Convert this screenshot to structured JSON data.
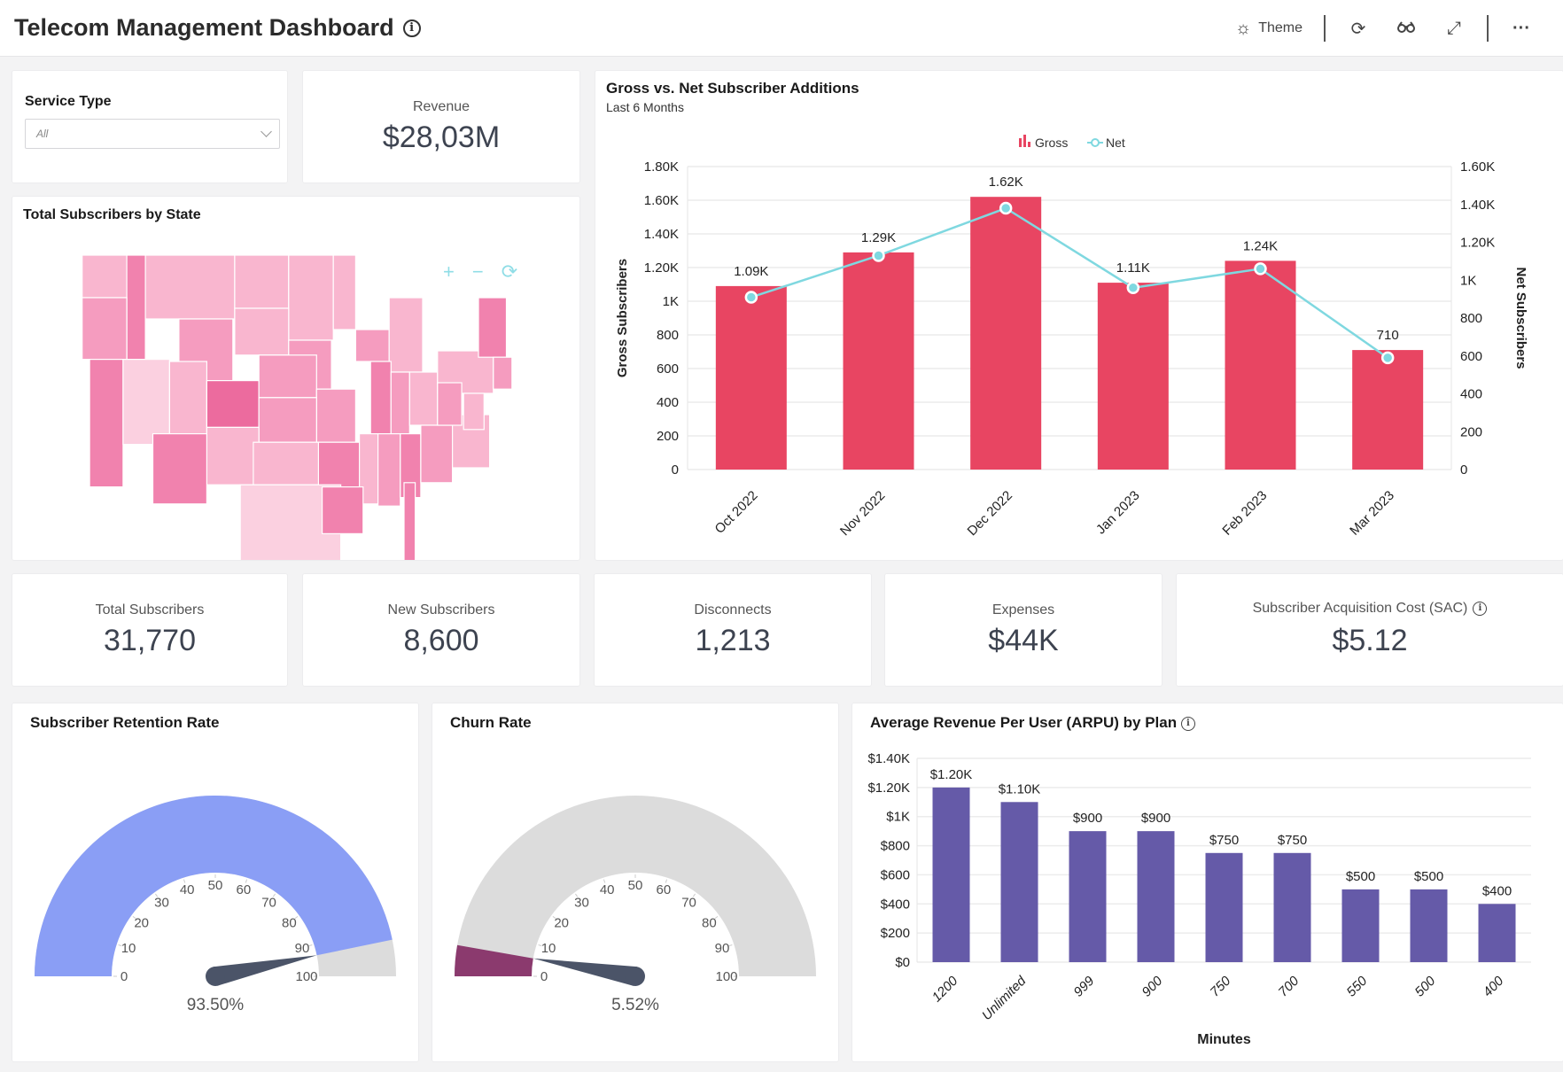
{
  "header": {
    "title": "Telecom Management Dashboard",
    "title_icon": "info-icon",
    "toolbar": {
      "theme_label": "Theme",
      "theme_icon": "sun-icon",
      "refresh_icon": "refresh-icon",
      "glasses_icon": "glasses-icon",
      "expand_icon": "expand-icon",
      "more_icon": "more-icon"
    }
  },
  "filter": {
    "label": "Service Type",
    "selected": "All"
  },
  "revenue": {
    "label": "Revenue",
    "value": "$28,03M"
  },
  "map": {
    "title": "Total Subscribers by State",
    "controls": {
      "zoom_in": "+",
      "zoom_out": "−",
      "reset": "⟳"
    },
    "color_scale": [
      "#fbd0e0",
      "#f9b6cf",
      "#f59cbf",
      "#f182ae",
      "#ec6b9e"
    ]
  },
  "kpis": [
    {
      "label": "Total Subscribers",
      "value": "31,770"
    },
    {
      "label": "New Subscribers",
      "value": "8,600"
    },
    {
      "label": "Disconnects",
      "value": "1,213"
    },
    {
      "label": "Expenses",
      "value": "$44K"
    },
    {
      "label": "Subscriber Acquisition Cost (SAC)",
      "value": "$5.12"
    }
  ],
  "chart_data": [
    {
      "id": "gross-net",
      "type": "bar",
      "title": "Gross vs. Net Subscriber Additions",
      "subtitle": "Last 6 Months",
      "categories": [
        "Oct 2022",
        "Nov 2022",
        "Dec 2022",
        "Jan 2023",
        "Feb 2023",
        "Mar 2023"
      ],
      "series": [
        {
          "name": "Gross",
          "type": "bar",
          "axis": "left",
          "color": "#e84562",
          "values": [
            1090,
            1290,
            1620,
            1110,
            1240,
            710
          ],
          "labels": [
            "1.09K",
            "1.29K",
            "1.62K",
            "1.11K",
            "1.24K",
            "710"
          ]
        },
        {
          "name": "Net",
          "type": "line",
          "axis": "right",
          "color": "#7fd8e0",
          "values": [
            910,
            1130,
            1380,
            960,
            1060,
            590
          ]
        }
      ],
      "ylabel": "Gross Subscribers",
      "y2label": "Net Subscribers",
      "ylim": [
        0,
        1800
      ],
      "y2lim": [
        0,
        1600
      ],
      "yticks": [
        0,
        200,
        400,
        600,
        800,
        1000,
        1200,
        1400,
        1600,
        1800
      ],
      "ytick_labels": [
        "0",
        "200",
        "400",
        "600",
        "800",
        "1K",
        "1.20K",
        "1.40K",
        "1.60K",
        "1.80K"
      ],
      "y2ticks": [
        0,
        200,
        400,
        600,
        800,
        1000,
        1200,
        1400,
        1600
      ],
      "y2tick_labels": [
        "0",
        "200",
        "400",
        "600",
        "800",
        "1K",
        "1.20K",
        "1.40K",
        "1.60K"
      ],
      "legend": "top-center",
      "grid": true
    },
    {
      "id": "retention",
      "type": "gauge",
      "title": "Subscriber Retention Rate",
      "value": 93.5,
      "value_label": "93.50%",
      "range": [
        0,
        100
      ],
      "ticks": [
        0,
        10,
        20,
        30,
        40,
        50,
        60,
        70,
        80,
        90,
        100
      ],
      "fill_color": "#8a9ef5",
      "track_color": "#dcdcdc"
    },
    {
      "id": "churn",
      "type": "gauge",
      "title": "Churn Rate",
      "value": 5.52,
      "value_label": "5.52%",
      "range": [
        0,
        100
      ],
      "ticks": [
        0,
        10,
        20,
        30,
        40,
        50,
        60,
        70,
        80,
        90,
        100
      ],
      "fill_color": "#8b3a6e",
      "track_color": "#dcdcdc"
    },
    {
      "id": "arpu",
      "type": "bar",
      "title": "Average Revenue Per User (ARPU) by Plan",
      "categories": [
        "1200",
        "Unlimited",
        "999",
        "900",
        "750",
        "700",
        "550",
        "500",
        "400"
      ],
      "values": [
        1200,
        1100,
        900,
        900,
        750,
        750,
        500,
        500,
        400
      ],
      "labels": [
        "$1.20K",
        "$1.10K",
        "$900",
        "$900",
        "$750",
        "$750",
        "$500",
        "$500",
        "$400"
      ],
      "xlabel": "Minutes",
      "ylabel": "",
      "ylim": [
        0,
        1400
      ],
      "yticks": [
        0,
        200,
        400,
        600,
        800,
        1000,
        1200,
        1400
      ],
      "ytick_labels": [
        "$0",
        "$200",
        "$400",
        "$600",
        "$800",
        "$1K",
        "$1.20K",
        "$1.40K"
      ],
      "color": "#655aa8",
      "grid": true
    }
  ]
}
